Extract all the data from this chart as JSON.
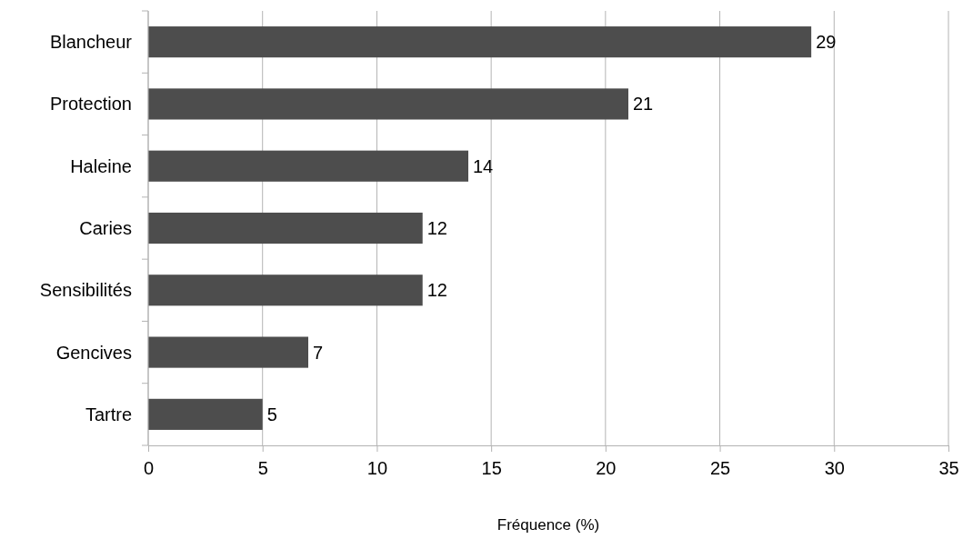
{
  "chart_data": {
    "type": "bar",
    "orientation": "horizontal",
    "xlabel": "Fréquence (%)",
    "categories": [
      "Blancheur",
      "Protection",
      "Haleine",
      "Caries",
      "Sensibilités",
      "Gencives",
      "Tartre"
    ],
    "values": [
      29,
      21,
      14,
      12,
      12,
      7,
      5
    ],
    "color": "#4d4d4d",
    "xlim": [
      0,
      35
    ],
    "xticks": [
      0,
      5,
      10,
      15,
      20,
      25,
      30,
      35
    ],
    "grid": "x",
    "data_labels": true
  }
}
